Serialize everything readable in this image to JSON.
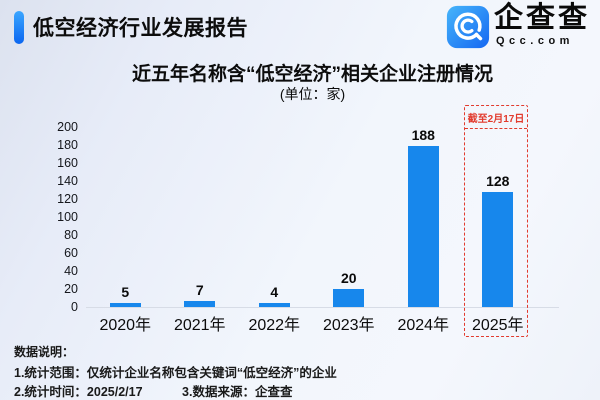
{
  "header": {
    "title": "低空经济行业发展报告"
  },
  "logo": {
    "name": "企查查",
    "domain": "Qcc.com",
    "icon": "qcc-spiral-search-icon",
    "brand_color": "#1a7df0"
  },
  "chart": {
    "title": "近五年名称含“低空经济”相关企业注册情况",
    "subtitle": "(单位：家)"
  },
  "chart_data": {
    "type": "bar",
    "title": "近五年名称含“低空经济”相关企业注册情况",
    "unit_label": "(单位：家)",
    "categories": [
      "2020年",
      "2021年",
      "2022年",
      "2023年",
      "2024年",
      "2025年"
    ],
    "values": [
      5,
      7,
      4,
      20,
      188,
      128
    ],
    "ylim": [
      0,
      200
    ],
    "yticks": [
      0,
      20,
      40,
      60,
      80,
      100,
      120,
      140,
      160,
      180,
      200
    ],
    "grid": false,
    "legend": false,
    "bar_color": "#1787EC",
    "annotation": {
      "text": "截至2月17日",
      "applies_to": "2025年",
      "color": "#e23b2e",
      "style": "dashed-box"
    }
  },
  "footnotes": {
    "heading": "数据说明：",
    "line1": "1.统计范围：仅统计企业名称包含关键词“低空经济”的企业",
    "line2_left": "2.统计时间：2025/2/17",
    "line2_right": "3.数据来源：企查查"
  },
  "colors": {
    "bar": "#1787EC",
    "annotation_red": "#e23b2e",
    "accent_top": "#3ba6ff",
    "accent_bottom": "#0b66f0",
    "baseline": "#d7dce6"
  }
}
